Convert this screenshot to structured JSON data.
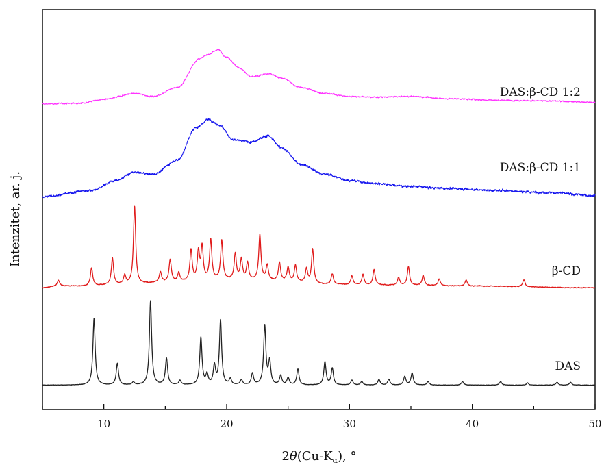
{
  "chart_data": {
    "type": "line",
    "title": "",
    "xlabel": {
      "pre": "2",
      "theta": "θ",
      "mid": "(Cu-K",
      "sub": "α",
      "post": "), °"
    },
    "ylabel": "Intenzitet, ar. j.",
    "xlim": [
      5,
      50
    ],
    "xticks": [
      10,
      20,
      30,
      40,
      50
    ],
    "yticks_shown": false,
    "grid": false,
    "legend": "inline labels at right",
    "series": [
      {
        "name": "DAS:β-CD 1:2",
        "color": "#ff33ff",
        "baseline": 0.02,
        "noise": 0.012,
        "points": [
          [
            5,
            0.0
          ],
          [
            8,
            0.01
          ],
          [
            10,
            0.06
          ],
          [
            12.5,
            0.14
          ],
          [
            14,
            0.1
          ],
          [
            16,
            0.22
          ],
          [
            17.8,
            0.6
          ],
          [
            18.5,
            0.66
          ],
          [
            19.3,
            0.72
          ],
          [
            20,
            0.62
          ],
          [
            21,
            0.48
          ],
          [
            22,
            0.36
          ],
          [
            23.5,
            0.4
          ],
          [
            24.5,
            0.34
          ],
          [
            26,
            0.22
          ],
          [
            28,
            0.14
          ],
          [
            30,
            0.1
          ],
          [
            32,
            0.09
          ],
          [
            35,
            0.1
          ],
          [
            38,
            0.07
          ],
          [
            42,
            0.05
          ],
          [
            46,
            0.04
          ],
          [
            50,
            0.02
          ]
        ]
      },
      {
        "name": "DAS:β-CD 1:1",
        "color": "#1515ee",
        "baseline": 0.02,
        "noise": 0.015,
        "points": [
          [
            5,
            0.0
          ],
          [
            9,
            0.06
          ],
          [
            11,
            0.16
          ],
          [
            12.5,
            0.24
          ],
          [
            14,
            0.22
          ],
          [
            16,
            0.36
          ],
          [
            17.5,
            0.68
          ],
          [
            18.5,
            0.76
          ],
          [
            19.5,
            0.7
          ],
          [
            20.5,
            0.56
          ],
          [
            22,
            0.54
          ],
          [
            23.3,
            0.6
          ],
          [
            24.5,
            0.48
          ],
          [
            26,
            0.32
          ],
          [
            28,
            0.22
          ],
          [
            30,
            0.16
          ],
          [
            32,
            0.13
          ],
          [
            35,
            0.1
          ],
          [
            38,
            0.08
          ],
          [
            42,
            0.06
          ],
          [
            46,
            0.04
          ],
          [
            50,
            0.01
          ]
        ]
      },
      {
        "name": "β-CD",
        "color": "#e01b1b",
        "baseline": 0.02,
        "noise": 0.006,
        "points": [
          [
            5,
            0.01
          ],
          [
            6.3,
            0.03
          ],
          [
            8,
            0.03
          ],
          [
            12,
            0.05
          ],
          [
            16,
            0.08
          ],
          [
            20,
            0.1
          ],
          [
            24,
            0.09
          ],
          [
            28,
            0.05
          ],
          [
            32,
            0.04
          ],
          [
            40,
            0.03
          ],
          [
            50,
            0.01
          ]
        ],
        "peaks": [
          [
            6.3,
            0.07
          ],
          [
            9.0,
            0.21
          ],
          [
            10.7,
            0.31
          ],
          [
            11.7,
            0.1
          ],
          [
            12.5,
            0.91
          ],
          [
            14.6,
            0.12
          ],
          [
            15.4,
            0.26
          ],
          [
            16.1,
            0.1
          ],
          [
            17.1,
            0.36
          ],
          [
            17.7,
            0.33
          ],
          [
            18.0,
            0.38
          ],
          [
            18.7,
            0.47
          ],
          [
            19.6,
            0.46
          ],
          [
            20.7,
            0.3
          ],
          [
            21.2,
            0.24
          ],
          [
            21.7,
            0.2
          ],
          [
            22.7,
            0.53
          ],
          [
            23.3,
            0.18
          ],
          [
            24.3,
            0.21
          ],
          [
            25.0,
            0.16
          ],
          [
            25.6,
            0.19
          ],
          [
            26.5,
            0.16
          ],
          [
            27.0,
            0.4
          ],
          [
            28.6,
            0.12
          ],
          [
            30.2,
            0.1
          ],
          [
            31.1,
            0.12
          ],
          [
            32.0,
            0.18
          ],
          [
            34.0,
            0.09
          ],
          [
            34.8,
            0.22
          ],
          [
            36.0,
            0.12
          ],
          [
            37.3,
            0.08
          ],
          [
            39.5,
            0.07
          ],
          [
            44.2,
            0.08
          ]
        ]
      },
      {
        "name": "DAS",
        "color": "#222222",
        "baseline": 0.005,
        "noise": 0.004,
        "points": [
          [
            5,
            0.0
          ],
          [
            50,
            0.0
          ]
        ],
        "peaks": [
          [
            9.2,
            0.93
          ],
          [
            11.1,
            0.3
          ],
          [
            12.4,
            0.04
          ],
          [
            13.8,
            1.17
          ],
          [
            15.1,
            0.37
          ],
          [
            16.2,
            0.06
          ],
          [
            17.9,
            0.66
          ],
          [
            18.4,
            0.14
          ],
          [
            19.0,
            0.26
          ],
          [
            19.5,
            0.9
          ],
          [
            20.3,
            0.08
          ],
          [
            21.2,
            0.07
          ],
          [
            22.1,
            0.16
          ],
          [
            23.1,
            0.82
          ],
          [
            23.5,
            0.32
          ],
          [
            24.4,
            0.13
          ],
          [
            25.0,
            0.1
          ],
          [
            25.8,
            0.22
          ],
          [
            28.0,
            0.32
          ],
          [
            28.6,
            0.23
          ],
          [
            30.2,
            0.07
          ],
          [
            31.0,
            0.05
          ],
          [
            32.4,
            0.08
          ],
          [
            33.2,
            0.08
          ],
          [
            34.5,
            0.12
          ],
          [
            35.1,
            0.17
          ],
          [
            36.4,
            0.05
          ],
          [
            39.2,
            0.05
          ],
          [
            42.3,
            0.05
          ],
          [
            44.5,
            0.03
          ],
          [
            46.9,
            0.04
          ],
          [
            48.0,
            0.04
          ]
        ]
      }
    ]
  }
}
